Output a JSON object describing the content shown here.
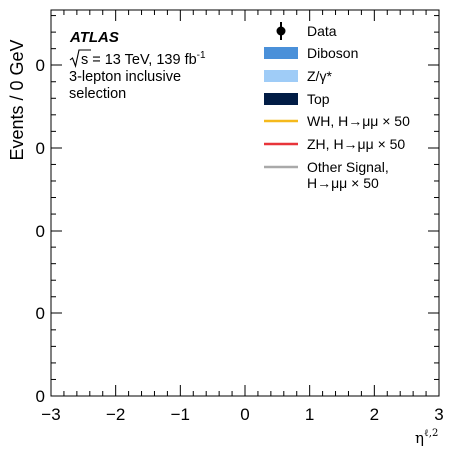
{
  "chart_data": {
    "type": "bar",
    "title": "",
    "xlabel": "η",
    "xlabel_sup": "ℓ,2",
    "ylabel": "Events / 0 GeV",
    "xlim": [
      -3,
      3
    ],
    "x_ticks": [
      "−3",
      "−2",
      "−1",
      "0",
      "1",
      "2",
      "3"
    ],
    "y_ticks": [
      "0",
      "0",
      "0",
      "0",
      "0"
    ],
    "atlas_label": "ATLAS",
    "energy_label": "= 13 TeV, 139 fb",
    "energy_sup": "-1",
    "sqrt_s": "s",
    "selection_line1": "3-lepton inclusive",
    "selection_line2": "selection",
    "legend_position": "top-right",
    "legend": [
      {
        "name": "Data",
        "style": "marker",
        "color": "#000000"
      },
      {
        "name": "Diboson",
        "style": "fill",
        "color": "#4a90d9"
      },
      {
        "name": "Z/γ*",
        "style": "fill",
        "color": "#9fccf7"
      },
      {
        "name": "Top",
        "style": "fill",
        "color": "#011c45"
      },
      {
        "name": "WH, H→μμ × 50",
        "style": "line",
        "color": "#f5b91c"
      },
      {
        "name": "ZH, H→μμ × 50",
        "style": "line",
        "color": "#e8343a"
      },
      {
        "name": "Other Signal,",
        "name2": "H→μμ × 50",
        "style": "line",
        "color": "#a9a9a9"
      }
    ],
    "series": []
  }
}
